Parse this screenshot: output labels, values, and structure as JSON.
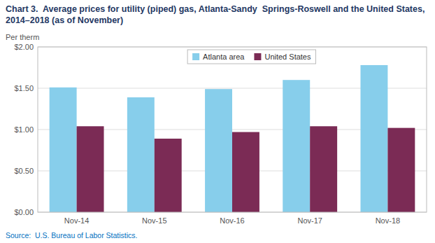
{
  "chart_data": {
    "type": "bar",
    "title": "Chart 3.  Average prices for utility (piped) gas, Atlanta-Sandy  Springs-Roswell and the United States, 2014–2018 (as of November)",
    "y_label": "Per therm",
    "annotations": [
      "Source:  U.S. Bureau of Labor Statistics."
    ],
    "categories": [
      "Nov-14",
      "Nov-15",
      "Nov-16",
      "Nov-17",
      "Nov-18"
    ],
    "series": [
      {
        "name": "Atlanta area",
        "color": "#87CEEB",
        "values": [
          1.51,
          1.39,
          1.49,
          1.6,
          1.78
        ]
      },
      {
        "name": "United States",
        "color": "#7B2B55",
        "values": [
          1.04,
          0.89,
          0.97,
          1.04,
          1.02
        ]
      }
    ],
    "ylim": [
      0.0,
      2.0
    ],
    "yticks": [
      {
        "value": 0.0,
        "label": "$0.00"
      },
      {
        "value": 0.5,
        "label": "$0.50"
      },
      {
        "value": 1.0,
        "label": "$1.00"
      },
      {
        "value": 1.5,
        "label": "$1.50"
      },
      {
        "value": 2.0,
        "label": "$2.00"
      }
    ],
    "grid": true,
    "legend": "top"
  }
}
